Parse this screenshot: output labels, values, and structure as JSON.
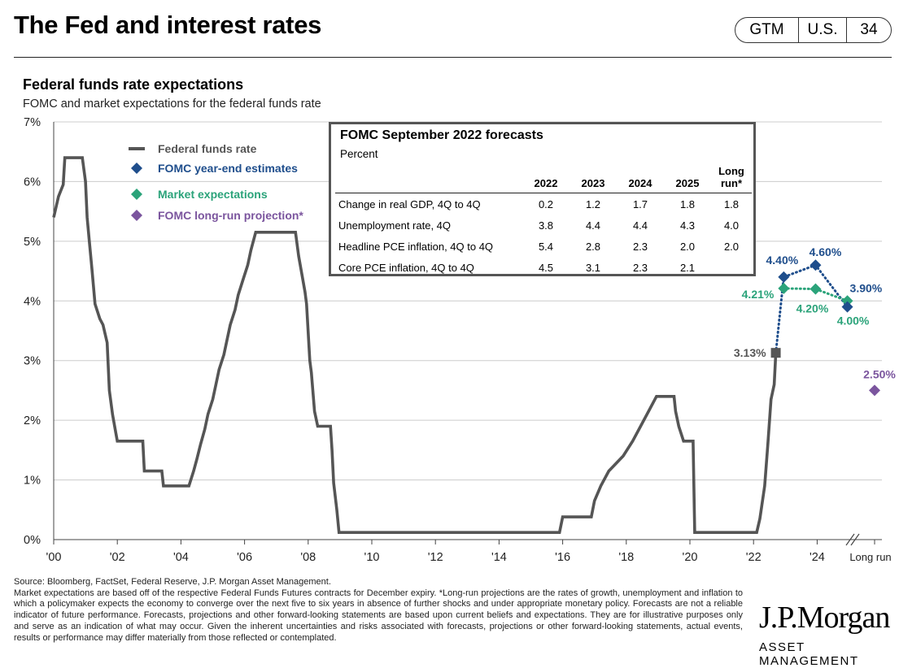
{
  "header": {
    "title": "The Fed and interest rates",
    "tag_gtm": "GTM",
    "tag_region": "U.S.",
    "tag_page": "34"
  },
  "chart_title": "Federal funds rate expectations",
  "chart_subtitle": "FOMC and market expectations for the federal funds rate",
  "colors": {
    "ffr": "#555555",
    "fomc": "#1f4e8c",
    "market": "#2ba37a",
    "longrun": "#7b559e",
    "grid": "#cccccc"
  },
  "chart_data": {
    "type": "line",
    "xlim": [
      2000,
      2025.8
    ],
    "ylim": [
      0,
      7
    ],
    "y_ticks": [
      0,
      1,
      2,
      3,
      4,
      5,
      6,
      7
    ],
    "y_tick_labels": [
      "0%",
      "1%",
      "2%",
      "3%",
      "4%",
      "5%",
      "6%",
      "7%"
    ],
    "x_ticks": [
      2000,
      2002,
      2004,
      2006,
      2008,
      2010,
      2012,
      2014,
      2016,
      2018,
      2020,
      2022,
      2024
    ],
    "x_tick_labels": [
      "'00",
      "'02",
      "'04",
      "'06",
      "'08",
      "'10",
      "'12",
      "'14",
      "'16",
      "'18",
      "'20",
      "'22",
      "'24"
    ],
    "long_run_label": "Long run",
    "legend": [
      {
        "key": "ffr",
        "label": "Federal funds rate",
        "marker": "line"
      },
      {
        "key": "fomc",
        "label": "FOMC  year-end estimates",
        "marker": "diamond"
      },
      {
        "key": "market",
        "label": "Market expectations",
        "marker": "diamond"
      },
      {
        "key": "longrun",
        "label": "FOMC  long-run projection*",
        "marker": "diamond"
      }
    ],
    "fed_funds_rate": [
      [
        2000.0,
        5.4
      ],
      [
        2000.15,
        5.75
      ],
      [
        2000.3,
        5.95
      ],
      [
        2000.35,
        6.4
      ],
      [
        2000.9,
        6.4
      ],
      [
        2001.0,
        6.0
      ],
      [
        2001.05,
        5.4
      ],
      [
        2001.12,
        5.0
      ],
      [
        2001.2,
        4.55
      ],
      [
        2001.3,
        3.95
      ],
      [
        2001.45,
        3.7
      ],
      [
        2001.55,
        3.6
      ],
      [
        2001.68,
        3.3
      ],
      [
        2001.75,
        2.5
      ],
      [
        2001.85,
        2.1
      ],
      [
        2001.95,
        1.8
      ],
      [
        2002.0,
        1.65
      ],
      [
        2002.8,
        1.65
      ],
      [
        2002.85,
        1.15
      ],
      [
        2003.4,
        1.15
      ],
      [
        2003.45,
        0.9
      ],
      [
        2004.25,
        0.9
      ],
      [
        2004.4,
        1.15
      ],
      [
        2004.5,
        1.35
      ],
      [
        2004.62,
        1.6
      ],
      [
        2004.75,
        1.85
      ],
      [
        2004.85,
        2.1
      ],
      [
        2005.0,
        2.35
      ],
      [
        2005.1,
        2.6
      ],
      [
        2005.2,
        2.85
      ],
      [
        2005.35,
        3.1
      ],
      [
        2005.45,
        3.35
      ],
      [
        2005.55,
        3.6
      ],
      [
        2005.7,
        3.85
      ],
      [
        2005.8,
        4.1
      ],
      [
        2005.95,
        4.35
      ],
      [
        2006.1,
        4.6
      ],
      [
        2006.2,
        4.85
      ],
      [
        2006.35,
        5.15
      ],
      [
        2007.6,
        5.15
      ],
      [
        2007.7,
        4.75
      ],
      [
        2007.8,
        4.45
      ],
      [
        2007.9,
        4.15
      ],
      [
        2007.95,
        3.95
      ],
      [
        2008.05,
        3.0
      ],
      [
        2008.1,
        2.8
      ],
      [
        2008.2,
        2.15
      ],
      [
        2008.3,
        1.9
      ],
      [
        2008.7,
        1.9
      ],
      [
        2008.75,
        1.5
      ],
      [
        2008.8,
        0.95
      ],
      [
        2008.9,
        0.5
      ],
      [
        2008.97,
        0.12
      ],
      [
        2015.9,
        0.12
      ],
      [
        2016.0,
        0.38
      ],
      [
        2016.9,
        0.38
      ],
      [
        2017.0,
        0.65
      ],
      [
        2017.2,
        0.9
      ],
      [
        2017.45,
        1.15
      ],
      [
        2017.9,
        1.4
      ],
      [
        2018.2,
        1.65
      ],
      [
        2018.45,
        1.9
      ],
      [
        2018.7,
        2.15
      ],
      [
        2018.95,
        2.4
      ],
      [
        2019.5,
        2.4
      ],
      [
        2019.55,
        2.15
      ],
      [
        2019.65,
        1.9
      ],
      [
        2019.8,
        1.65
      ],
      [
        2020.1,
        1.65
      ],
      [
        2020.15,
        0.12
      ],
      [
        2022.1,
        0.12
      ],
      [
        2022.2,
        0.35
      ],
      [
        2022.35,
        0.9
      ],
      [
        2022.45,
        1.6
      ],
      [
        2022.55,
        2.35
      ],
      [
        2022.65,
        2.6
      ],
      [
        2022.7,
        3.13
      ]
    ],
    "fomc_path": [
      [
        2022.7,
        3.13
      ],
      [
        2022.95,
        4.4
      ],
      [
        2023.95,
        4.6
      ],
      [
        2024.95,
        3.9
      ]
    ],
    "market_path": [
      [
        2022.95,
        4.21
      ],
      [
        2023.95,
        4.2
      ],
      [
        2024.95,
        4.0
      ]
    ],
    "long_run_point": 2.5,
    "point_labels": [
      {
        "series": "ffr",
        "text": "3.13%"
      },
      {
        "series": "fomc",
        "text": "4.40%"
      },
      {
        "series": "fomc",
        "text": "4.60%"
      },
      {
        "series": "fomc",
        "text": "3.90%"
      },
      {
        "series": "market",
        "text": "4.21%"
      },
      {
        "series": "market",
        "text": "4.20%"
      },
      {
        "series": "market",
        "text": "4.00%"
      },
      {
        "series": "longrun",
        "text": "2.50%"
      }
    ]
  },
  "forecast_table": {
    "title": "FOMC September 2022 forecasts",
    "unit": "Percent",
    "columns": [
      "2022",
      "2023",
      "2024",
      "2025",
      "Long run*"
    ],
    "rows": [
      {
        "label": "Change in real GDP, 4Q to 4Q",
        "values": [
          "0.2",
          "1.2",
          "1.7",
          "1.8",
          "1.8"
        ]
      },
      {
        "label": "Unemployment rate, 4Q",
        "values": [
          "3.8",
          "4.4",
          "4.4",
          "4.3",
          "4.0"
        ]
      },
      {
        "label": "Headline PCE inflation, 4Q to 4Q",
        "values": [
          "5.4",
          "2.8",
          "2.3",
          "2.0",
          "2.0"
        ]
      },
      {
        "label": "Core PCE inflation, 4Q to 4Q",
        "values": [
          "4.5",
          "3.1",
          "2.3",
          "2.1",
          ""
        ]
      }
    ]
  },
  "footnote": {
    "source": "Source: Bloomberg, FactSet, Federal Reserve, J.P. Morgan Asset Management.",
    "text": "Market expectations are based off of the respective Federal Funds Futures contracts for December expiry. *Long-run projections are the rates of growth, unemployment and inflation to which a policymaker expects the economy to converge over the next five to six years in absence of further shocks and under appropriate monetary policy. Forecasts are not a reliable indicator of future performance. Forecasts, projections and other forward-looking statements are based upon current beliefs and expectations. They are for illustrative purposes only and serve as an indication of what may occur. Given the inherent uncertainties and risks associated with forecasts, projections or other forward-looking statements, actual events, results or performance may differ materially from those reflected or contemplated."
  },
  "logo": {
    "line1": "J.P.Morgan",
    "line2": "ASSET MANAGEMENT"
  }
}
